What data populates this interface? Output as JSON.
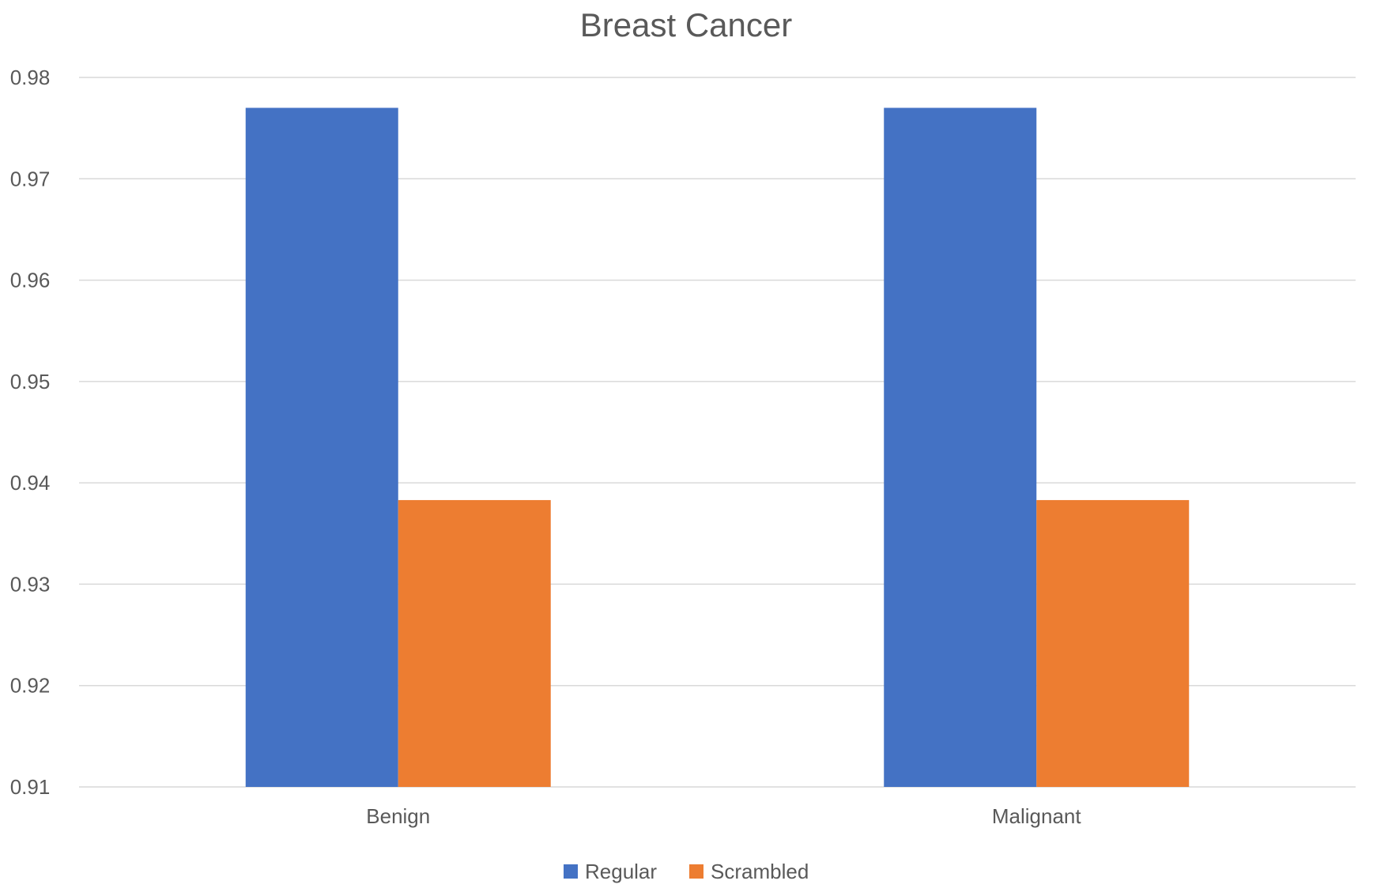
{
  "chart_data": {
    "type": "bar",
    "title": "Breast Cancer",
    "xlabel": "",
    "ylabel": "",
    "categories": [
      "Benign",
      "Malignant"
    ],
    "series": [
      {
        "name": "Regular",
        "color": "#4472C4",
        "values": [
          0.977,
          0.977
        ]
      },
      {
        "name": "Scrambled",
        "color": "#ED7D31",
        "values": [
          0.9383,
          0.9383
        ]
      }
    ],
    "ylim": [
      0.91,
      0.98
    ],
    "yticks": [
      "0.91",
      "0.92",
      "0.93",
      "0.94",
      "0.95",
      "0.96",
      "0.97",
      "0.98"
    ],
    "grid": true,
    "legend_position": "bottom"
  }
}
